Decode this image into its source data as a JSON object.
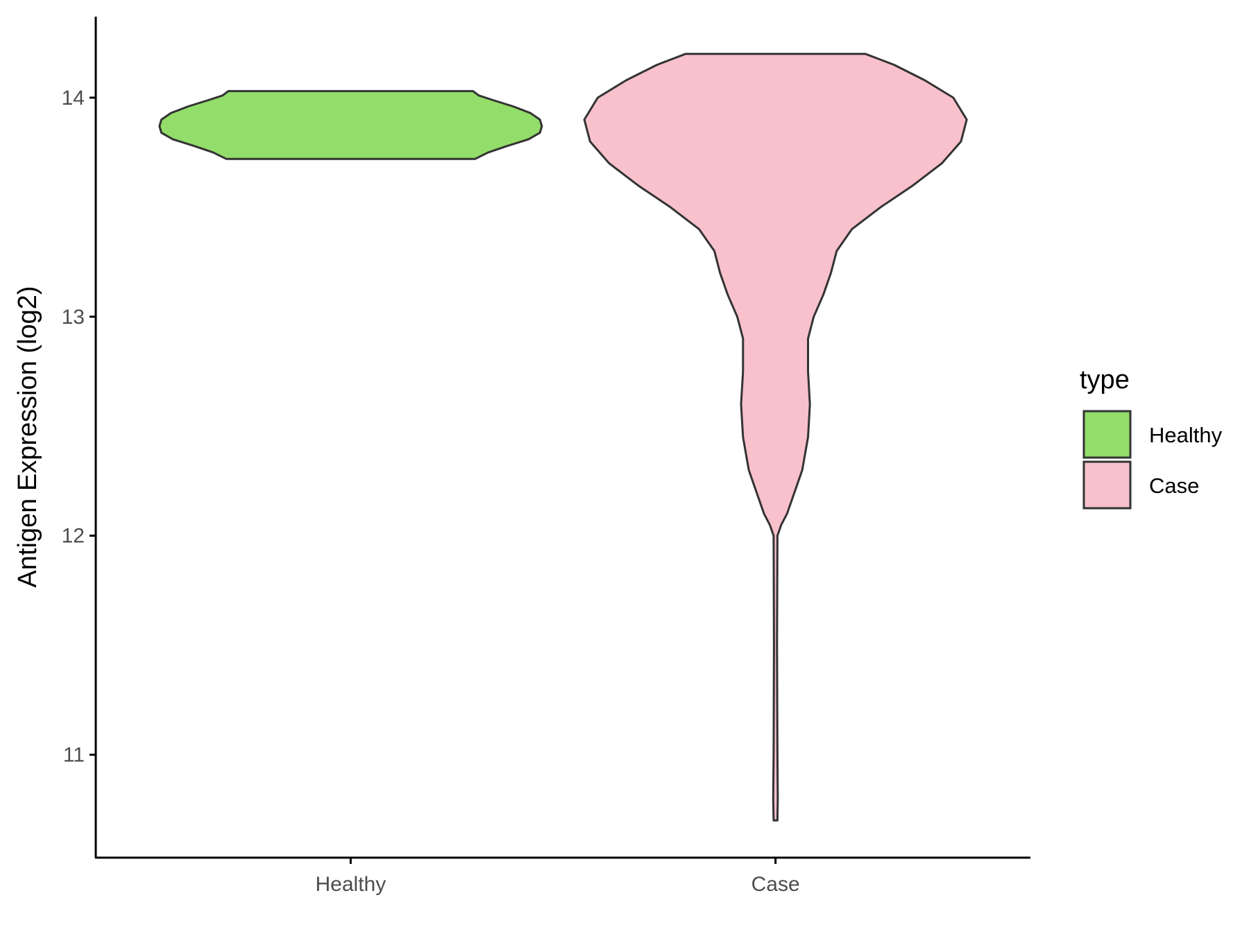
{
  "chart_data": {
    "type": "violin",
    "title": "",
    "xlabel": "",
    "ylabel": "Antigen Expression (log2)",
    "ylim": [
      10.53,
      14.37
    ],
    "yticks": [
      11,
      12,
      13,
      14
    ],
    "ytick_labels": [
      "11",
      "12",
      "13",
      "14"
    ],
    "categories": [
      "Healthy",
      "Case"
    ],
    "grid": false,
    "legend": {
      "title": "type",
      "placement": "right",
      "entries": [
        {
          "label": "Healthy",
          "color": "#93DD6A"
        },
        {
          "label": "Case",
          "color": "#F8C1CC"
        }
      ]
    },
    "outline_color": "#333333",
    "series": [
      {
        "name": "Healthy",
        "color": "#93DD6A",
        "ymin": 13.72,
        "ymax": 14.03,
        "density": [
          [
            13.72,
            0.65
          ],
          [
            13.75,
            0.72
          ],
          [
            13.78,
            0.82
          ],
          [
            13.81,
            0.93
          ],
          [
            13.84,
            0.99
          ],
          [
            13.87,
            1.0
          ],
          [
            13.9,
            0.99
          ],
          [
            13.93,
            0.94
          ],
          [
            13.96,
            0.85
          ],
          [
            13.99,
            0.74
          ],
          [
            14.01,
            0.67
          ],
          [
            14.03,
            0.64
          ]
        ]
      },
      {
        "name": "Case",
        "color": "#F8C1CC",
        "ymin": 10.7,
        "ymax": 14.2,
        "density": [
          [
            10.7,
            0.01
          ],
          [
            10.8,
            0.012
          ],
          [
            11.0,
            0.01
          ],
          [
            11.5,
            0.008
          ],
          [
            12.0,
            0.01
          ],
          [
            12.05,
            0.03
          ],
          [
            12.1,
            0.06
          ],
          [
            12.2,
            0.1
          ],
          [
            12.3,
            0.14
          ],
          [
            12.45,
            0.17
          ],
          [
            12.6,
            0.18
          ],
          [
            12.75,
            0.17
          ],
          [
            12.9,
            0.17
          ],
          [
            13.0,
            0.2
          ],
          [
            13.1,
            0.25
          ],
          [
            13.2,
            0.29
          ],
          [
            13.3,
            0.32
          ],
          [
            13.4,
            0.4
          ],
          [
            13.5,
            0.55
          ],
          [
            13.6,
            0.72
          ],
          [
            13.7,
            0.87
          ],
          [
            13.8,
            0.97
          ],
          [
            13.9,
            1.0
          ],
          [
            14.0,
            0.93
          ],
          [
            14.08,
            0.78
          ],
          [
            14.15,
            0.62
          ],
          [
            14.2,
            0.47
          ]
        ]
      }
    ]
  }
}
